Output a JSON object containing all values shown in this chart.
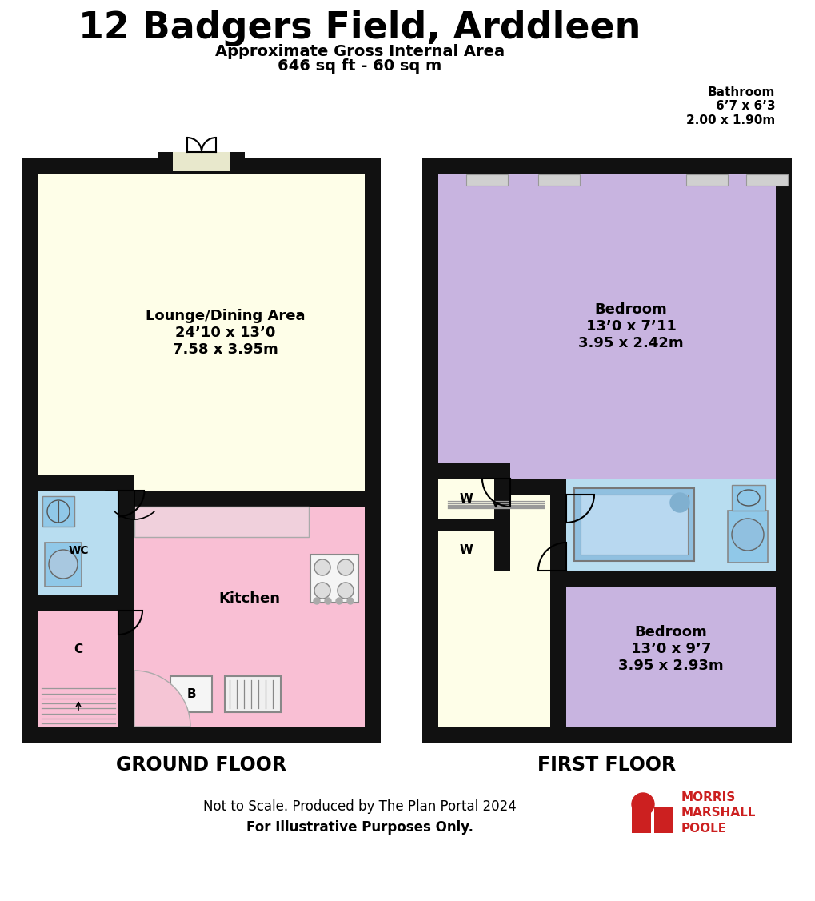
{
  "title": "12 Badgers Field, Arddleen",
  "subtitle1": "Approximate Gross Internal Area",
  "subtitle2": "646 sq ft - 60 sq m",
  "bathroom_ext_label": "Bathroom\n6’7 x 6’3\n2.00 x 1.90m",
  "ground_floor_label": "GROUND FLOOR",
  "first_floor_label": "FIRST FLOOR",
  "footer1": "Not to Scale. Produced by The Plan Portal 2024",
  "footer2": "For Illustrative Purposes Only.",
  "lounge_label": "Lounge/Dining Area\n24’10 x 13’0\n7.58 x 3.95m",
  "kitchen_label": "Kitchen",
  "wc_label": "WC",
  "c_label": "C",
  "bedroom1_label": "Bedroom\n13’0 x 7’11\n3.95 x 2.42m",
  "bedroom2_label": "Bedroom\n13’0 x 9’7\n3.95 x 2.93m",
  "w_label": "W",
  "b_label": "B",
  "bg_color": "#ffffff",
  "wall_color": "#111111",
  "lounge_color": "#fefee8",
  "kitchen_color": "#f9bfd4",
  "wc_color": "#b8ddf0",
  "bedroom_color": "#c8b4e0",
  "bathroom_color": "#b8ddf0",
  "landing_color": "#fefee8",
  "morris_color": "#cc2020",
  "radiator_color": "#d0d0d0",
  "fixture_color": "#90c8e8"
}
